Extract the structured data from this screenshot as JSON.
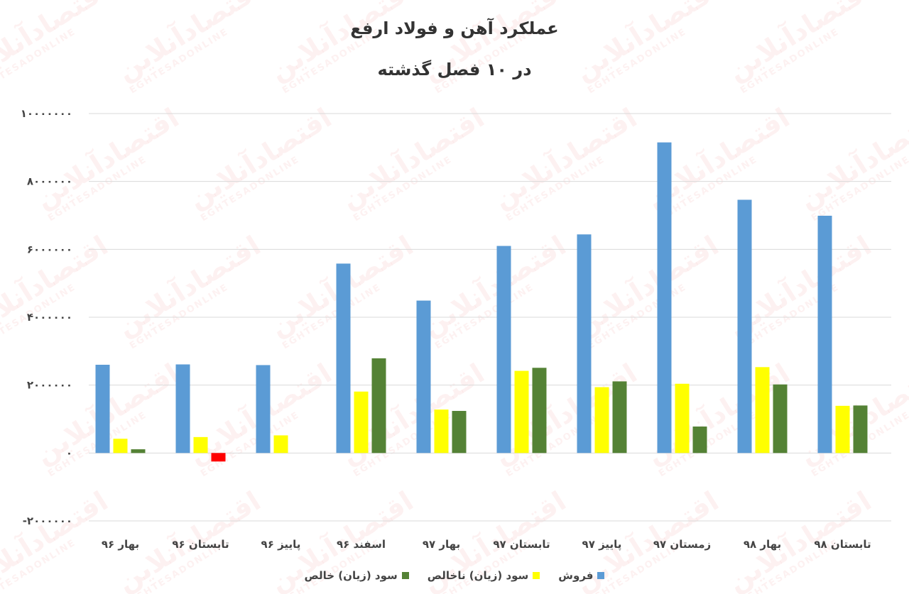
{
  "chart_data": {
    "type": "bar",
    "title": "عملکرد آهن و فولاد ارفع",
    "subtitle": "در ۱۰ فصل گذشته",
    "categories": [
      "بهار ۹۶",
      "تابستان ۹۶",
      "پاییز ۹۶",
      "اسفند ۹۶",
      "بهار ۹۷",
      "تابستان ۹۷",
      "پاییز ۹۷",
      "زمستان ۹۷",
      "بهار ۹۸",
      "تابستان ۹۸"
    ],
    "series": [
      {
        "name": "فروش",
        "color": "#5B9BD5",
        "values": [
          2600000,
          2610000,
          2590000,
          5580000,
          4490000,
          6100000,
          6440000,
          9150000,
          7460000,
          6990000
        ]
      },
      {
        "name": "سود (زیان) ناخالص",
        "color": "#FFFF00",
        "values": [
          420000,
          470000,
          520000,
          1810000,
          1280000,
          2420000,
          1940000,
          2040000,
          2530000,
          1390000
        ]
      },
      {
        "name": "سود (زیان) خالص",
        "color": "#548235",
        "values": [
          110000,
          -250000,
          0,
          2790000,
          1240000,
          2510000,
          2110000,
          780000,
          2020000,
          1400000
        ]
      }
    ],
    "negative_color": "#FF0000",
    "ylim": [
      -2000000,
      10000000
    ],
    "yticks": [
      "-۲۰۰۰۰۰۰",
      "۰",
      "۲۰۰۰۰۰۰",
      "۴۰۰۰۰۰۰",
      "۶۰۰۰۰۰۰",
      "۸۰۰۰۰۰۰",
      "۱۰۰۰۰۰۰۰"
    ],
    "ytick_values": [
      -2000000,
      0,
      2000000,
      4000000,
      6000000,
      8000000,
      10000000
    ],
    "grid": true,
    "legend": "bottom"
  },
  "watermark": {
    "text": "اقتصادآنلاین",
    "subtext": "EGHTESADONLINE"
  }
}
